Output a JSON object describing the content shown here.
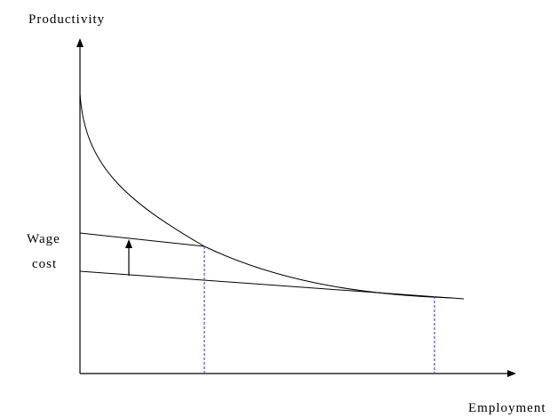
{
  "y_axis_label": "Productivity",
  "wage_label": [
    "Wage",
    "cost"
  ],
  "x_axis_label": "Employment"
}
